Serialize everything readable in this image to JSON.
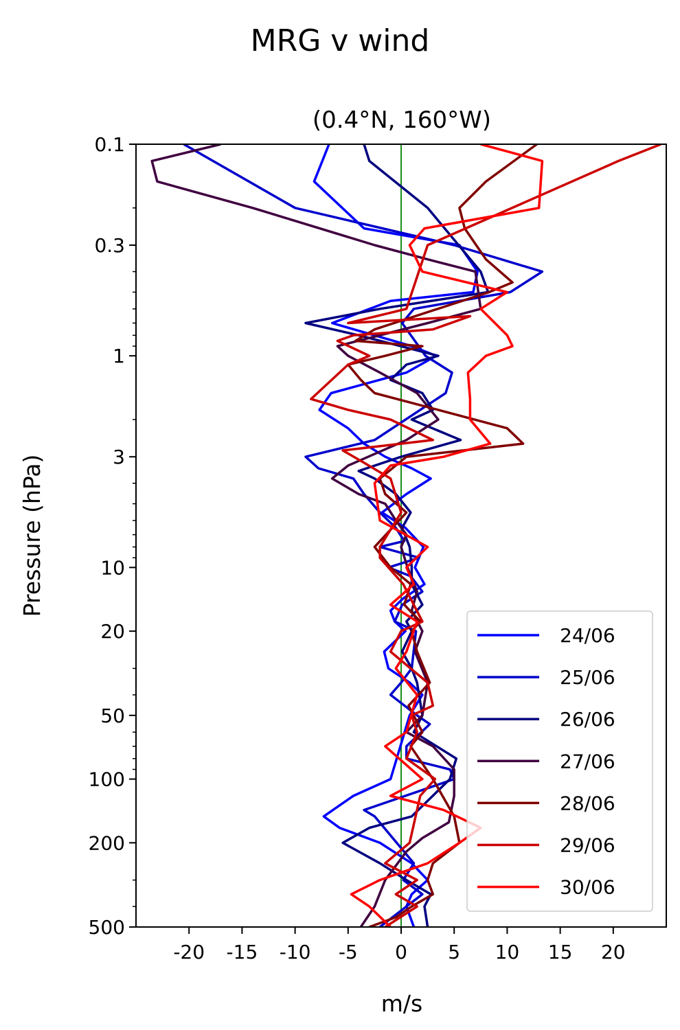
{
  "suptitle": "MRG v wind",
  "chart_data": {
    "type": "line",
    "title": "(0.4°N, 160°W)",
    "xlabel": "m/s",
    "ylabel": "Pressure (hPa)",
    "xlim": [
      -25,
      25
    ],
    "ylim": [
      500,
      0.1
    ],
    "yscale": "log",
    "xticks": [
      -20,
      -15,
      -10,
      -5,
      0,
      5,
      10,
      15,
      20
    ],
    "xticklabels": [
      "-20",
      "-15",
      "-10",
      "-5",
      "0",
      "5",
      "10",
      "15",
      "20"
    ],
    "yticks": [
      0.1,
      0.3,
      1,
      3,
      10,
      20,
      50,
      100,
      200,
      500
    ],
    "yticklabels": [
      "0.1",
      "0.3",
      "1",
      "3",
      "10",
      "20",
      "50",
      "100",
      "200",
      "500"
    ],
    "zero_line_color": "#008000",
    "legend_position": "lower right",
    "grid": false,
    "series": [
      {
        "name": "24/06",
        "color": "#0000ff",
        "u": [
          -6.8,
          -8.2,
          -3.5,
          5.5,
          7.2,
          6.8,
          -1.0,
          -6.5,
          1.0,
          3.3,
          0.5,
          -6.6,
          -7.7,
          -5.0,
          -3.5,
          -1.5,
          1.0,
          2.8,
          0.5,
          -1.8,
          0.4,
          2.1,
          1.3,
          2.2,
          0.2,
          -1.0,
          -0.6,
          0.4,
          -1.6,
          -1.2,
          0.8,
          2.0,
          0.8,
          -1.0,
          -4.5,
          -7.3,
          -5.8,
          -2.0,
          1.0,
          2.5,
          1.0,
          0.5,
          1.2
        ],
        "p": [
          0.1,
          0.15,
          0.25,
          0.3,
          0.4,
          0.5,
          0.55,
          0.7,
          0.9,
          1.0,
          1.2,
          1.5,
          1.8,
          2.2,
          2.6,
          3.0,
          3.4,
          3.8,
          4.5,
          5.5,
          6.5,
          8,
          10,
          12,
          14,
          16,
          18,
          20,
          25,
          30,
          35,
          40,
          50,
          100,
          120,
          150,
          170,
          200,
          250,
          300,
          350,
          400,
          500
        ]
      },
      {
        "name": "25/06",
        "color": "#0000cc",
        "u": [
          -20.5,
          -10.0,
          5.0,
          13.3,
          10.3,
          1.2,
          0.1,
          2.3,
          4.8,
          4.2,
          -2.5,
          -9.0,
          -7.8,
          -4.5,
          -3.5,
          -2.0,
          -0.5,
          0.3,
          -2.0,
          1.7,
          -1.2,
          0.9,
          2.0,
          0.1,
          -0.6,
          1.4,
          1.0,
          0.0,
          -1.0,
          1.5,
          2.7,
          0.5,
          0.5,
          4.6,
          5.0,
          -3.5,
          -2.5,
          1.2,
          0.2,
          2.0,
          0.5,
          -2.0
        ],
        "p": [
          0.1,
          0.2,
          0.3,
          0.4,
          0.5,
          0.6,
          0.7,
          1.0,
          1.2,
          1.5,
          2.5,
          3.0,
          3.4,
          3.8,
          4.5,
          5.5,
          6.5,
          7.5,
          8,
          9,
          10,
          11,
          13,
          15,
          18,
          20,
          30,
          35,
          40,
          50,
          55,
          70,
          80,
          90,
          100,
          140,
          150,
          250,
          300,
          350,
          400,
          500
        ]
      },
      {
        "name": "26/06",
        "color": "#000080",
        "u": [
          -3.5,
          -3.0,
          2.5,
          7.5,
          8.2,
          -2.0,
          -9.0,
          -4.0,
          3.5,
          0.5,
          -1.0,
          2.0,
          3.0,
          1.0,
          5.6,
          0.0,
          -4.0,
          -2.5,
          -0.5,
          0.9,
          0.1,
          0.8,
          1.0,
          1.0,
          2.0,
          0.5,
          1.0,
          0.1,
          1.0,
          1.5,
          2.0,
          1.2,
          5.2,
          4.6,
          1.0,
          -3.0,
          -5.5,
          -2.0,
          0.5,
          2.8,
          2.2,
          2.5
        ],
        "p": [
          0.1,
          0.12,
          0.2,
          0.4,
          0.5,
          0.6,
          0.7,
          0.8,
          1.0,
          1.1,
          1.3,
          1.5,
          1.8,
          2.0,
          2.5,
          3.0,
          3.5,
          3.8,
          4.5,
          5.5,
          6.5,
          8,
          10,
          12,
          15,
          18,
          20,
          25,
          30,
          35,
          50,
          60,
          80,
          100,
          150,
          170,
          200,
          250,
          300,
          350,
          400,
          500
        ]
      },
      {
        "name": "27/06",
        "color": "#400040",
        "u": [
          -17.0,
          -23.5,
          -23.0,
          -14.0,
          -2.5,
          2.5,
          7.0,
          7.5,
          2.5,
          -6.0,
          -5.0,
          -2.0,
          1.5,
          3.5,
          0.5,
          -5.0,
          -6.5,
          -4.0,
          -1.5,
          -0.5,
          0.5,
          0.0,
          0.6,
          1.5,
          1.0,
          2.0,
          1.3,
          2.5,
          2.0,
          0.5,
          3.0,
          5.0,
          5.0,
          4.5,
          2.0,
          0.5,
          -1.5,
          -2.5,
          -3.8
        ],
        "p": [
          0.1,
          0.12,
          0.15,
          0.2,
          0.3,
          0.35,
          0.4,
          0.6,
          0.7,
          0.9,
          1.0,
          1.2,
          1.5,
          2.0,
          2.5,
          3.3,
          3.8,
          4.5,
          5.0,
          6,
          7,
          8,
          10,
          13,
          16,
          20,
          25,
          35,
          50,
          60,
          70,
          90,
          120,
          160,
          190,
          220,
          300,
          400,
          500
        ]
      },
      {
        "name": "28/06",
        "color": "#800000",
        "u": [
          12.8,
          8.0,
          5.5,
          6.0,
          8.0,
          10.5,
          8.3,
          -2.5,
          -4.3,
          2.0,
          -1.5,
          -5.0,
          -3.8,
          -2.5,
          3.5,
          10.0,
          11.5,
          0.5,
          -2.0,
          -1.5,
          0.5,
          -2.5,
          -1.0,
          0.9,
          0.3,
          1.8,
          1.0,
          1.5,
          2.7,
          0.7,
          2.0,
          0.9,
          3.0,
          5.0,
          5.5,
          3.0,
          2.5,
          3.0,
          1.0,
          -0.5,
          -3.0
        ],
        "p": [
          0.1,
          0.15,
          0.2,
          0.25,
          0.35,
          0.45,
          0.5,
          0.75,
          0.85,
          0.9,
          1.0,
          1.1,
          1.3,
          1.5,
          1.8,
          2.2,
          2.6,
          3.0,
          3.8,
          4.5,
          5.5,
          8,
          10,
          12,
          15,
          18,
          20,
          25,
          35,
          45,
          60,
          70,
          100,
          150,
          200,
          250,
          300,
          350,
          400,
          450,
          500
        ]
      },
      {
        "name": "29/06",
        "color": "#cc0000",
        "u": [
          24.5,
          20.5,
          2.5,
          0.5,
          -5.0,
          6.5,
          3.0,
          -4.5,
          -6.0,
          -3.0,
          -5.0,
          -8.5,
          -5.0,
          -1.0,
          3.0,
          -5.5,
          -3.5,
          -1.0,
          0.0,
          -2.0,
          -2.0,
          0.2,
          2.0,
          0.0,
          -1.0,
          2.5,
          3.0,
          1.0,
          1.5,
          0.5,
          3.2,
          1.8,
          0.8,
          -1.5,
          1.5,
          -0.5,
          1.5,
          -1.5
        ],
        "p": [
          0.1,
          0.12,
          0.3,
          0.6,
          0.7,
          0.65,
          0.75,
          0.8,
          0.85,
          1.0,
          1.1,
          1.6,
          1.8,
          2.0,
          2.5,
          2.8,
          3.2,
          3.8,
          5.5,
          8,
          9,
          12,
          18,
          20,
          25,
          35,
          45,
          50,
          60,
          80,
          100,
          120,
          200,
          250,
          300,
          350,
          400,
          500
        ]
      },
      {
        "name": "30/06",
        "color": "#ff0000",
        "u": [
          7.5,
          13.3,
          13.0,
          2.2,
          0.8,
          2.0,
          10.0,
          7.5,
          10.0,
          10.5,
          8.0,
          6.3,
          6.5,
          6.5,
          8.4,
          4.0,
          -1.0,
          -2.5,
          -2.0,
          2.5,
          0.5,
          1.2,
          -1.0,
          1.5,
          0.5,
          -0.5,
          1.5,
          0.5,
          -1.5,
          2.0,
          -1.0,
          4.0,
          7.5,
          5.5,
          2.5,
          -2.0,
          -4.7,
          -3.0,
          -1.0
        ],
        "p": [
          0.1,
          0.12,
          0.2,
          0.25,
          0.3,
          0.4,
          0.5,
          0.6,
          0.8,
          0.9,
          1.0,
          1.2,
          1.6,
          2.0,
          2.6,
          3.0,
          3.3,
          4.0,
          6.0,
          8,
          10,
          12,
          15,
          18,
          25,
          30,
          40,
          60,
          70,
          100,
          120,
          140,
          170,
          200,
          250,
          300,
          350,
          400,
          500
        ]
      }
    ]
  }
}
